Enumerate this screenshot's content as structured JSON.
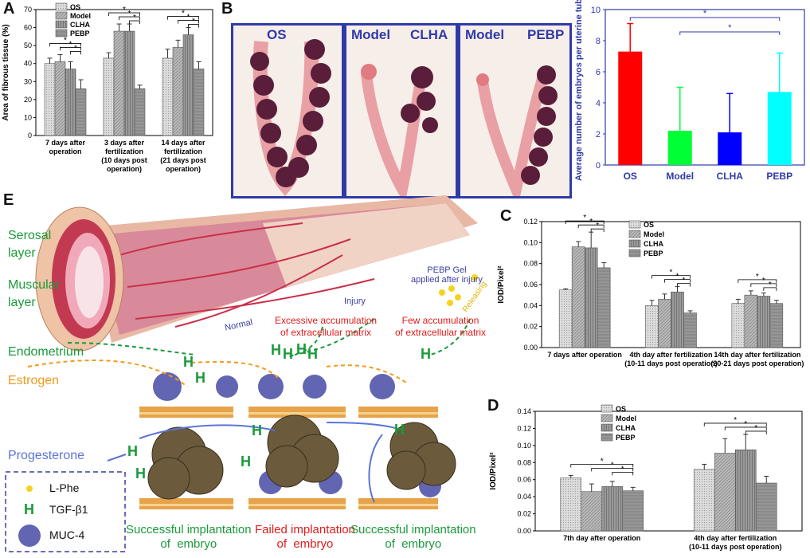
{
  "panels": {
    "A": "A",
    "B": "B",
    "C": "C",
    "D": "D",
    "E": "E"
  },
  "colors": {
    "os": "#d9d9d9",
    "model": "#b5b5b5",
    "clha": "#8c8c8c",
    "pebp": "#6e6e6e",
    "b_os": "#ff0000",
    "b_model": "#00ff33",
    "b_clha": "#0000ff",
    "b_pebp": "#00ffff",
    "photo_border": "#2f3aa8",
    "green": "#1a9a3a",
    "orange": "#f29a1d",
    "blue": "#5b74d8",
    "red": "#e31a1a"
  },
  "chart_data": [
    {
      "id": "A",
      "type": "bar",
      "ylabel": "Area of fibrous tissue (%)",
      "ylim": [
        0,
        70
      ],
      "yticks": [
        "0",
        "10",
        "20",
        "30",
        "40",
        "50",
        "60",
        "70"
      ],
      "legend": [
        "OS",
        "Model",
        "CLHA",
        "PEBP"
      ],
      "categories": [
        "7 days after operation",
        "3 days after fertilization (10 days post operation)",
        "14 days after fertilization (21 days post operation)"
      ],
      "category_lines": [
        [
          "7 days after",
          "operation"
        ],
        [
          "3 days after",
          "fertilization",
          "(10 days post",
          "operation)"
        ],
        [
          "14 days after",
          "fertilization",
          "(21 days post",
          "operation)"
        ]
      ],
      "series": [
        {
          "name": "OS",
          "values": [
            40,
            43,
            43
          ]
        },
        {
          "name": "Model",
          "values": [
            41,
            58,
            49
          ]
        },
        {
          "name": "CLHA",
          "values": [
            37,
            58,
            56
          ]
        },
        {
          "name": "PEBP",
          "values": [
            26,
            26,
            37
          ]
        }
      ],
      "errors": [
        [
          3,
          3,
          5
        ],
        [
          4,
          4,
          4
        ],
        [
          4,
          4,
          4
        ],
        [
          5,
          2,
          4
        ]
      ],
      "sig": "*"
    },
    {
      "id": "B",
      "type": "bar",
      "ylabel": "Average number of embryos per uterine tube",
      "ylim": [
        0,
        10
      ],
      "yticks": [
        "0",
        "2",
        "4",
        "6",
        "8",
        "10"
      ],
      "categories": [
        "OS",
        "Model",
        "CLHA",
        "PEBP"
      ],
      "values": [
        7.3,
        2.2,
        2.1,
        4.7
      ],
      "errors": [
        1.8,
        2.8,
        2.5,
        2.5
      ],
      "sig": "*"
    },
    {
      "id": "C",
      "type": "bar",
      "ylabel": "IOD/Pixel²",
      "ylim": [
        0,
        0.12
      ],
      "yticks": [
        "0.00",
        "0.02",
        "0.04",
        "0.06",
        "0.08",
        "0.10",
        "0.12"
      ],
      "legend": [
        "OS",
        "Model",
        "CLHA",
        "PEBP"
      ],
      "categories": [
        "7 days after operation",
        "4th day after fertilization (10-11 days post operation)",
        "14th day after fertilization (20-21 days post operation)"
      ],
      "category_lines": [
        [
          "7 days after operation"
        ],
        [
          "4th day after fertilization",
          "(10-11 days post operation)"
        ],
        [
          "14th day after fertilization",
          "(20-21 days post operation)"
        ]
      ],
      "series": [
        {
          "name": "OS",
          "values": [
            0.055,
            0.04,
            0.042
          ]
        },
        {
          "name": "Model",
          "values": [
            0.096,
            0.046,
            0.05
          ]
        },
        {
          "name": "CLHA",
          "values": [
            0.095,
            0.053,
            0.049
          ]
        },
        {
          "name": "PEBP",
          "values": [
            0.076,
            0.033,
            0.042
          ]
        }
      ],
      "errors": [
        [
          0.001,
          0.005,
          0.004
        ],
        [
          0.005,
          0.005,
          0.004
        ],
        [
          0.015,
          0.005,
          0.003
        ],
        [
          0.005,
          0.002,
          0.003
        ]
      ],
      "sig": "*"
    },
    {
      "id": "D",
      "type": "bar",
      "ylabel": "IOD/Pixel²",
      "ylim": [
        0,
        0.14
      ],
      "yticks": [
        "0.00",
        "0.02",
        "0.04",
        "0.06",
        "0.08",
        "0.10",
        "0.12",
        "0.14"
      ],
      "legend": [
        "OS",
        "Model",
        "CLHA",
        "PEBP"
      ],
      "categories": [
        "7th day after operation",
        "4th day after fertilization (10-11 days post operation)"
      ],
      "category_lines": [
        [
          "7th day after operation"
        ],
        [
          "4th day after fertilization",
          "(10-11 days post operation)"
        ]
      ],
      "series": [
        {
          "name": "OS",
          "values": [
            0.062,
            0.072
          ]
        },
        {
          "name": "Model",
          "values": [
            0.046,
            0.091
          ]
        },
        {
          "name": "CLHA",
          "values": [
            0.052,
            0.095
          ]
        },
        {
          "name": "PEBP",
          "values": [
            0.047,
            0.056
          ]
        }
      ],
      "errors": [
        [
          0.003,
          0.006
        ],
        [
          0.009,
          0.017
        ],
        [
          0.006,
          0.018
        ],
        [
          0.004,
          0.008
        ]
      ],
      "sig": "*"
    }
  ],
  "photos": {
    "p1": [
      "OS"
    ],
    "p2": [
      "Model",
      "CLHA"
    ],
    "p3": [
      "Model",
      "PEBP"
    ]
  },
  "diagram": {
    "serosal": "Serosal\nlayer",
    "muscular": "Muscular\nlayer",
    "endometrium": "Endometrium",
    "estrogen": "Estrogen",
    "progesterone": "Progesterone",
    "normal": "Normal",
    "injury": "Injury",
    "pebp_gel": "PEBP Gel\napplied after injury",
    "releasing": "Releasing",
    "excessive": "Excessive accumulation\nof extracellular matrix",
    "few": "Few accumulation\nof extracellular matrix",
    "success1": "Successful implantation\nof  embryo",
    "failed": "Failed implantation\nof  embryo",
    "success2": "Successful implantation\nof  embryo",
    "legend_lphe": "L-Phe",
    "legend_tgf": "TGF-β1",
    "legend_muc": "MUC-4"
  }
}
